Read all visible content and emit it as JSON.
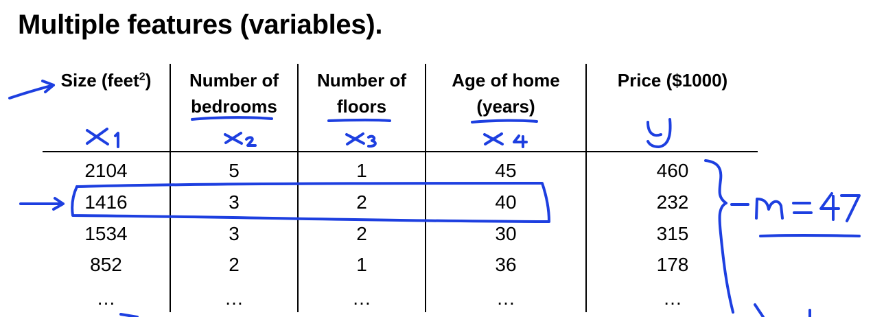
{
  "title": "Multiple features (variables).",
  "table": {
    "headers": [
      {
        "line1": "Size (feet",
        "sup": "2",
        "line1_end": ")",
        "line2": ""
      },
      {
        "line1": "Number of",
        "sup": "",
        "line1_end": "",
        "line2": "bedrooms"
      },
      {
        "line1": "Number of",
        "sup": "",
        "line1_end": "",
        "line2": "floors"
      },
      {
        "line1": "Age of home",
        "sup": "",
        "line1_end": "",
        "line2": "(years)"
      },
      {
        "line1": "Price ($1000)",
        "sup": "",
        "line1_end": "",
        "line2": ""
      }
    ],
    "rows": [
      [
        "2104",
        "5",
        "1",
        "45",
        "460"
      ],
      [
        "1416",
        "3",
        "2",
        "40",
        "232"
      ],
      [
        "1534",
        "3",
        "2",
        "30",
        "315"
      ],
      [
        "852",
        "2",
        "1",
        "36",
        "178"
      ],
      [
        "…",
        "…",
        "…",
        "…",
        "…"
      ]
    ]
  },
  "annotations": {
    "ink_color": "#1d3fe0",
    "feature_labels": [
      "x1",
      "x2",
      "x3",
      "x4",
      "y"
    ],
    "m_label": "m = 47"
  }
}
